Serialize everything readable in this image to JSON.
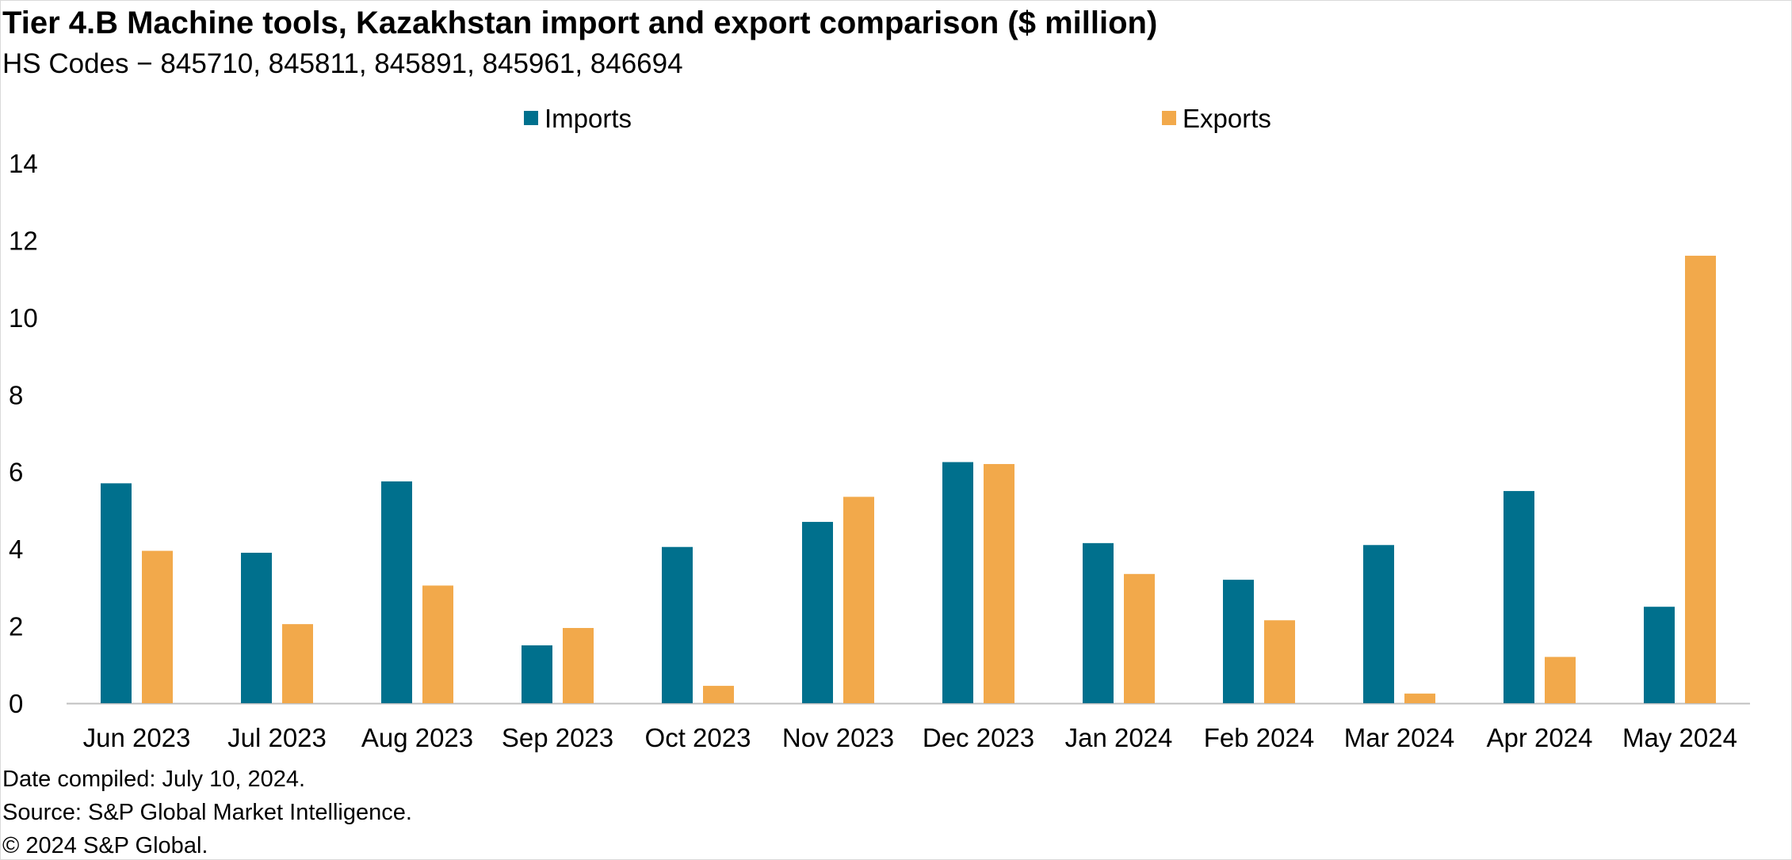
{
  "title": "Tier 4.B Machine tools, Kazakhstan import and export comparison ($ million)",
  "subtitle": "HS Codes − 845710, 845811, 845891, 845961, 846694",
  "footer": {
    "date_compiled": "Date compiled: July 10, 2024.",
    "source": "Source: S&P Global Market Intelligence.",
    "copyright": "© 2024 S&P Global."
  },
  "chart_data": {
    "type": "bar",
    "categories": [
      "Jun 2023",
      "Jul 2023",
      "Aug 2023",
      "Sep 2023",
      "Oct 2023",
      "Nov 2023",
      "Dec 2023",
      "Jan 2024",
      "Feb 2024",
      "Mar 2024",
      "Apr 2024",
      "May 2024"
    ],
    "series": [
      {
        "name": "Imports",
        "color": "#00708d",
        "values": [
          5.7,
          3.9,
          5.75,
          1.5,
          4.05,
          4.7,
          6.25,
          4.15,
          3.2,
          4.1,
          5.5,
          2.5
        ]
      },
      {
        "name": "Exports",
        "color": "#f2a94b",
        "values": [
          3.95,
          2.05,
          3.05,
          1.95,
          0.45,
          5.35,
          6.2,
          3.35,
          2.15,
          0.25,
          1.2,
          11.6
        ]
      }
    ],
    "yticks": [
      0,
      2,
      4,
      6,
      8,
      10,
      12,
      14
    ],
    "ylim": [
      0,
      14
    ],
    "xlabel": "",
    "ylabel": "",
    "grid": false,
    "legend": "top"
  }
}
